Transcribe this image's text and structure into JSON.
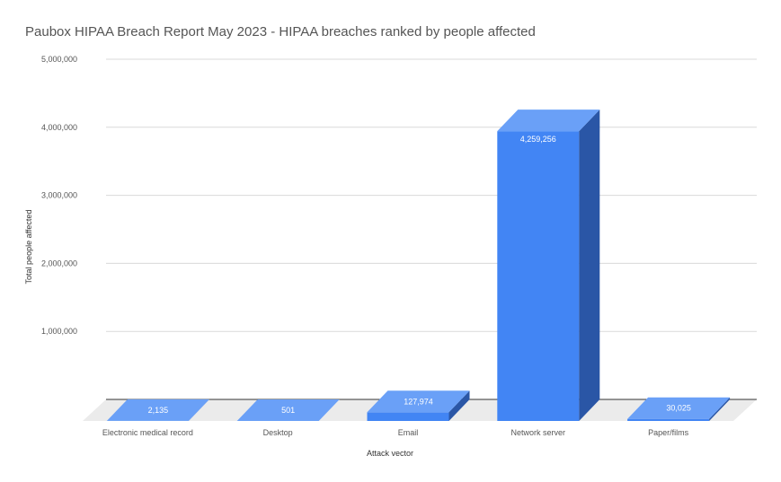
{
  "chart_data": {
    "type": "bar",
    "title": "Paubox HIPAA Breach Report May 2023 - HIPAA breaches ranked by people affected",
    "xlabel": "Attack vector",
    "ylabel": "Total people affected",
    "categories": [
      "Electronic medical record",
      "Desktop",
      "Email",
      "Network server",
      "Paper/films"
    ],
    "values": [
      2135,
      501,
      127974,
      4259256,
      30025
    ],
    "value_labels": [
      "2,135",
      "501",
      "127,974",
      "4,259,256",
      "30,025"
    ],
    "yticks": [
      "5,000,000",
      "4,000,000",
      "3,000,000",
      "2,000,000",
      "1,000,000"
    ],
    "ytick_values": [
      5000000,
      4000000,
      3000000,
      2000000,
      1000000
    ],
    "ylim": [
      0,
      5000000
    ],
    "grid": true,
    "legend": "none",
    "style": "3d-bar"
  },
  "colors": {
    "bar_front": "#4285f4",
    "bar_top": "#6aa0f7",
    "bar_side": "#2a56a6",
    "floor": "#ebebeb",
    "grid": "#d9d9d9",
    "baseline": "#333333"
  }
}
